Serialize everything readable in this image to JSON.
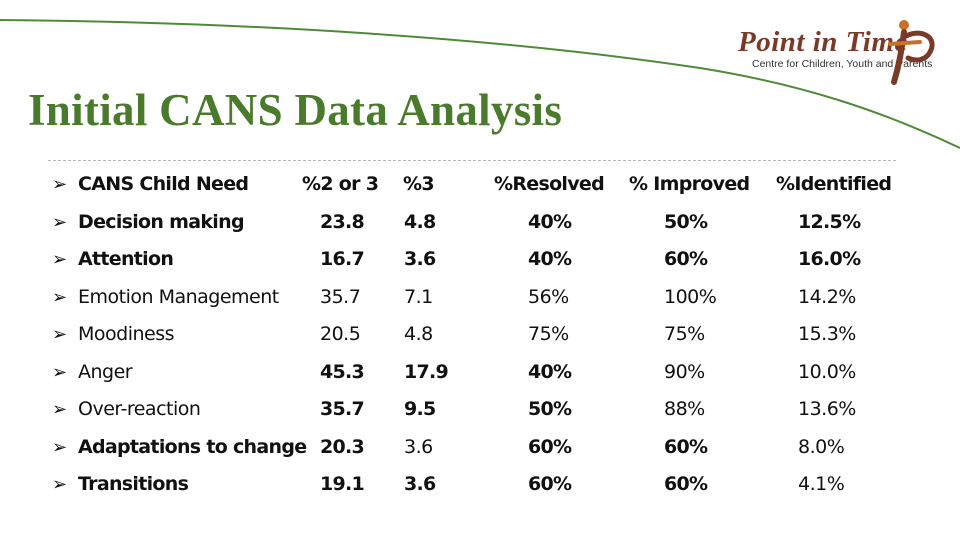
{
  "title": "Initial CANS Data Analysis",
  "logo": {
    "name": "Point in Time",
    "tagline": "Centre for Children, Youth and Parents"
  },
  "colors": {
    "title": "#4a7a2c",
    "swoosh": "#4f8a3a",
    "logo": "#7a3a28",
    "text": "#111111"
  },
  "bullet_icon": "arrow-bullet",
  "table": {
    "headers": [
      "CANS Child Need",
      "%2 or 3",
      "%3",
      "%Resolved",
      "% Improved",
      "%Identified"
    ],
    "rows": [
      {
        "need": "Decision making",
        "p23": "23.8",
        "p3": "4.8",
        "resolved": "40%",
        "improved": "50%",
        "identified": "12.5%",
        "bold": true
      },
      {
        "need": "Attention",
        "p23": "16.7",
        "p3": "3.6",
        "resolved": "40%",
        "improved": "60%",
        "identified": "16.0%",
        "bold": true
      },
      {
        "need": "Emotion Management",
        "p23": "35.7",
        "p3": "7.1",
        "resolved": "56%",
        "improved": "100%",
        "identified": "14.2%",
        "bold": false
      },
      {
        "need": "Moodiness",
        "p23": "20.5",
        "p3": "4.8",
        "resolved": "75%",
        "improved": "75%",
        "identified": "15.3%",
        "bold": false
      },
      {
        "need": "Anger",
        "p23": "45.3",
        "p3": "17.9",
        "resolved": "40%",
        "improved": "90%",
        "identified": "10.0%",
        "bold": false
      },
      {
        "need": "Over-reaction",
        "p23": "35.7",
        "p3": "9.5",
        "resolved": "50%",
        "improved": "88%",
        "identified": "13.6%",
        "bold": false
      },
      {
        "need": "Adaptations to change",
        "p23": "20.3",
        "p3": "3.6",
        "resolved": "60%",
        "improved": "60%",
        "identified": "8.0%",
        "bold": false
      },
      {
        "need": "Transitions",
        "p23": "19.1",
        "p3": "3.6",
        "resolved": "60%",
        "improved": "60%",
        "identified": "4.1%",
        "bold": false
      }
    ]
  }
}
